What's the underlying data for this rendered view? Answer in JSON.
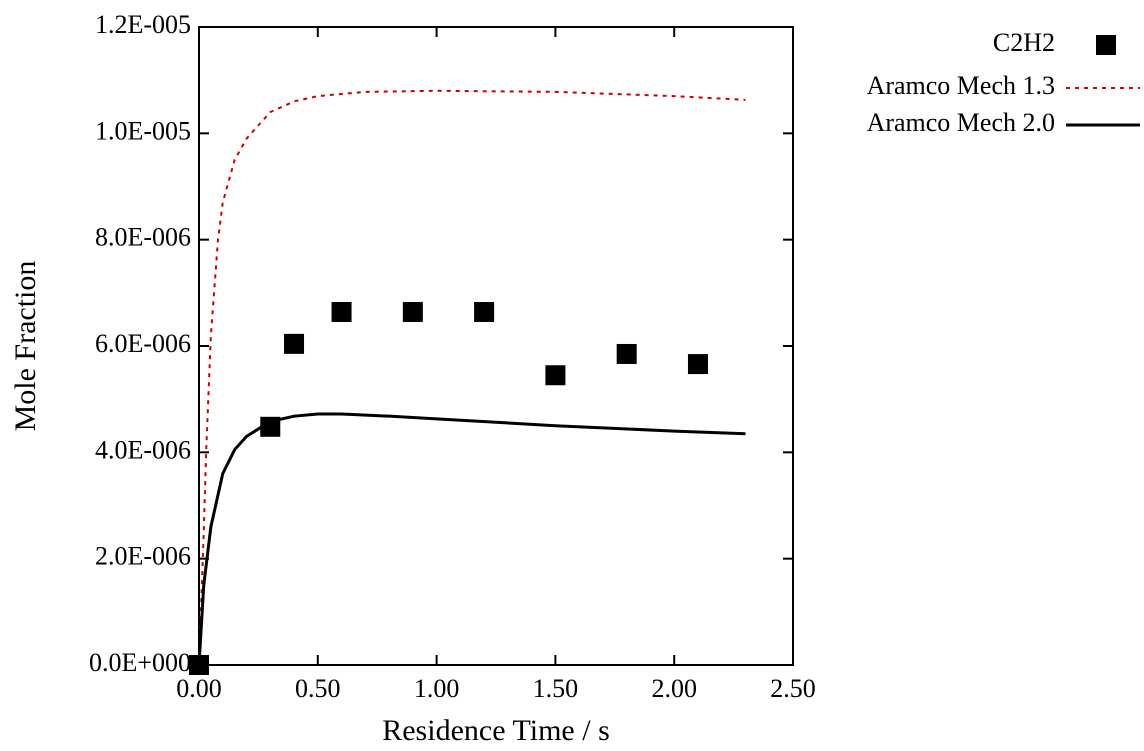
{
  "chart_data": {
    "type": "scatter-line",
    "xlabel": "Residence Time / s",
    "ylabel": "Mole Fraction",
    "xlim": [
      0,
      2.5
    ],
    "ylim": [
      0,
      1.2e-05
    ],
    "xticks": [
      {
        "value": 0,
        "label": "0.00"
      },
      {
        "value": 0.5,
        "label": "0.50"
      },
      {
        "value": 1.0,
        "label": "1.00"
      },
      {
        "value": 1.5,
        "label": "1.50"
      },
      {
        "value": 2.0,
        "label": "2.00"
      },
      {
        "value": 2.5,
        "label": "2.50"
      }
    ],
    "yticks": [
      {
        "value": 0,
        "label": "0.0E+000"
      },
      {
        "value": 2e-06,
        "label": "2.0E-006"
      },
      {
        "value": 4e-06,
        "label": "4.0E-006"
      },
      {
        "value": 6e-06,
        "label": "6.0E-006"
      },
      {
        "value": 8e-06,
        "label": "8.0E-006"
      },
      {
        "value": 1e-05,
        "label": "1.0E-005"
      },
      {
        "value": 1.2e-05,
        "label": "1.2E-005"
      }
    ],
    "series": [
      {
        "name": "C2H2",
        "style": "points",
        "color": "#000000",
        "x": [
          0,
          0.3,
          0.4,
          0.6,
          0.9,
          1.2,
          1.5,
          1.8,
          2.1
        ],
        "values": [
          0,
          4.48e-06,
          6.04e-06,
          6.64e-06,
          6.64e-06,
          6.64e-06,
          5.45e-06,
          5.85e-06,
          5.66e-06
        ]
      },
      {
        "name": "Aramco Mech 1.3",
        "style": "dashed",
        "color": "#cc0000",
        "x": [
          0,
          0.02,
          0.03,
          0.05,
          0.08,
          0.1,
          0.15,
          0.2,
          0.3,
          0.4,
          0.5,
          0.7,
          1.0,
          1.5,
          2.0,
          2.3
        ],
        "values": [
          0,
          2.5e-06,
          4e-06,
          6.2e-06,
          8e-06,
          8.7e-06,
          9.5e-06,
          9.9e-06,
          1.04e-05,
          1.06e-05,
          1.07e-05,
          1.078e-05,
          1.08e-05,
          1.078e-05,
          1.07e-05,
          1.063e-05
        ]
      },
      {
        "name": "Aramco Mech 2.0",
        "style": "solid",
        "color": "#000000",
        "x": [
          0,
          0.02,
          0.05,
          0.1,
          0.15,
          0.2,
          0.3,
          0.4,
          0.5,
          0.6,
          0.8,
          1.0,
          1.5,
          2.0,
          2.3
        ],
        "values": [
          0,
          1.5e-06,
          2.6e-06,
          3.6e-06,
          4.05e-06,
          4.3e-06,
          4.58e-06,
          4.68e-06,
          4.72e-06,
          4.72e-06,
          4.68e-06,
          4.63e-06,
          4.5e-06,
          4.4e-06,
          4.35e-06
        ]
      }
    ]
  }
}
